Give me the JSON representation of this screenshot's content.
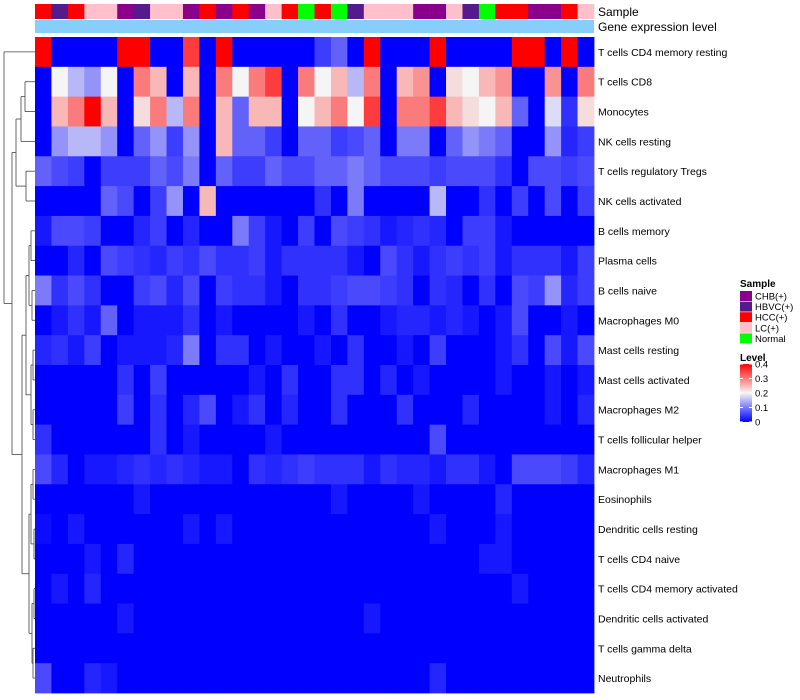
{
  "chart_data": {
    "type": "heatmap",
    "annotation_tracks": [
      "Sample",
      "Gene expression level"
    ],
    "gene_expression_level_color": "#87cefa",
    "sample_groups": [
      {
        "name": "CHB(+)",
        "color": "#8b008b"
      },
      {
        "name": "HBVC(+)",
        "color": "#551a8b"
      },
      {
        "name": "HCC(+)",
        "color": "#ff0000"
      },
      {
        "name": "LC(+)",
        "color": "#ffc0cb"
      },
      {
        "name": "Normal",
        "color": "#00ff00"
      }
    ],
    "sample_annotation": [
      "HCC(+)",
      "HBVC(+)",
      "HCC(+)",
      "LC(+)",
      "LC(+)",
      "CHB(+)",
      "HBVC(+)",
      "LC(+)",
      "LC(+)",
      "CHB(+)",
      "HCC(+)",
      "CHB(+)",
      "HCC(+)",
      "CHB(+)",
      "LC(+)",
      "HCC(+)",
      "Normal",
      "HCC(+)",
      "Normal",
      "HBVC(+)",
      "LC(+)",
      "LC(+)",
      "LC(+)",
      "CHB(+)",
      "CHB(+)",
      "LC(+)",
      "HBVC(+)",
      "Normal",
      "HCC(+)",
      "HCC(+)",
      "CHB(+)",
      "CHB(+)",
      "HCC(+)",
      "LC(+)"
    ],
    "rows": [
      "T cells CD4 memory resting",
      "T cells CD8",
      "Monocytes",
      "NK cells resting",
      "T cells regulatory  Tregs",
      "NK cells activated",
      "B cells memory",
      "Plasma cells",
      "B cells naive",
      "Macrophages M0",
      "Mast cells resting",
      "Mast cells activated",
      "Macrophages M2",
      "T cells follicular helper",
      "Macrophages M1",
      "Eosinophils",
      "Dendritic cells resting",
      "T cells CD4 naive",
      "T cells CD4 memory activated",
      "Dendritic cells activated",
      "T cells gamma delta",
      "Neutrophils"
    ],
    "values": [
      [
        0.4,
        0,
        0,
        0,
        0,
        0.4,
        0.4,
        0,
        0,
        0.35,
        0,
        0.4,
        0,
        0,
        0,
        0,
        0,
        0.05,
        0.08,
        0,
        0.4,
        0,
        0,
        0,
        0.4,
        0,
        0,
        0,
        0,
        0.4,
        0.4,
        0,
        0.4,
        0
      ],
      [
        0,
        0.2,
        0.15,
        0.12,
        0.2,
        0,
        0.3,
        0.25,
        0,
        0.25,
        0,
        0.3,
        0.2,
        0.3,
        0.35,
        0,
        0.3,
        0.2,
        0.25,
        0.15,
        0.3,
        0,
        0.25,
        0.28,
        0,
        0.22,
        0.2,
        0.25,
        0.28,
        0,
        0,
        0.28,
        0,
        0.3
      ],
      [
        0,
        0.25,
        0.3,
        0.4,
        0.25,
        0,
        0.22,
        0.3,
        0.15,
        0.3,
        0,
        0.25,
        0.08,
        0.25,
        0.25,
        0,
        0.2,
        0.25,
        0.3,
        0.2,
        0.35,
        0,
        0.3,
        0.3,
        0.35,
        0.25,
        0.22,
        0.2,
        0.25,
        0.08,
        0,
        0.18,
        0.04,
        0.22
      ],
      [
        0,
        0.12,
        0.15,
        0.15,
        0.12,
        0,
        0.08,
        0.12,
        0.05,
        0.12,
        0,
        0.25,
        0.08,
        0.08,
        0.05,
        0,
        0.08,
        0.08,
        0.05,
        0.06,
        0.08,
        0,
        0.1,
        0.1,
        0,
        0.08,
        0.12,
        0.1,
        0.08,
        0,
        0,
        0.12,
        0.03,
        0.05
      ],
      [
        0.08,
        0.06,
        0.05,
        0,
        0.05,
        0.05,
        0.05,
        0.08,
        0.06,
        0.1,
        0,
        0.08,
        0.05,
        0.05,
        0.08,
        0.06,
        0.06,
        0.08,
        0.08,
        0.1,
        0.08,
        0.06,
        0.06,
        0.06,
        0.05,
        0.06,
        0.06,
        0.06,
        0.04,
        0,
        0.06,
        0.06,
        0.05,
        0.06
      ],
      [
        0,
        0,
        0,
        0,
        0.08,
        0.06,
        0,
        0.05,
        0.12,
        0,
        0.25,
        0,
        0,
        0,
        0,
        0,
        0,
        0.04,
        0,
        0.1,
        0,
        0,
        0,
        0,
        0.15,
        0,
        0,
        0.04,
        0,
        0.05,
        0,
        0.06,
        0,
        0.05
      ],
      [
        0.02,
        0.06,
        0.06,
        0.05,
        0,
        0,
        0.03,
        0.05,
        0,
        0.03,
        0,
        0,
        0.1,
        0.05,
        0.02,
        0,
        0.05,
        0,
        0.06,
        0.05,
        0.04,
        0.02,
        0.03,
        0.04,
        0.03,
        0,
        0.05,
        0.05,
        0.02,
        0,
        0,
        0,
        0,
        0
      ],
      [
        0,
        0,
        0.03,
        0,
        0.06,
        0.05,
        0.04,
        0.03,
        0.05,
        0.04,
        0.06,
        0.04,
        0.04,
        0.05,
        0.02,
        0.04,
        0.04,
        0.04,
        0.04,
        0.02,
        0,
        0.06,
        0.04,
        0.02,
        0.04,
        0.05,
        0.04,
        0.05,
        0.02,
        0.04,
        0.04,
        0.04,
        0.02,
        0.05
      ],
      [
        0.1,
        0.04,
        0.06,
        0.04,
        0,
        0,
        0.05,
        0.06,
        0.03,
        0.06,
        0,
        0.05,
        0.04,
        0.04,
        0.02,
        0,
        0.04,
        0.04,
        0.05,
        0.06,
        0.06,
        0.05,
        0.04,
        0,
        0.04,
        0.03,
        0,
        0.04,
        0,
        0.06,
        0.05,
        0.12,
        0.03,
        0.05
      ],
      [
        0,
        0.02,
        0.04,
        0.02,
        0.08,
        0,
        0.02,
        0.02,
        0.02,
        0.04,
        0,
        0.02,
        0,
        0,
        0,
        0,
        0.02,
        0,
        0.04,
        0,
        0,
        0.02,
        0.03,
        0.03,
        0.02,
        0.03,
        0.02,
        0,
        0.02,
        0.06,
        0,
        0,
        0.02,
        0
      ],
      [
        0.03,
        0.04,
        0.02,
        0.05,
        0,
        0.02,
        0.02,
        0.02,
        0.03,
        0.1,
        0,
        0.04,
        0.04,
        0,
        0.02,
        0,
        0,
        0.02,
        0,
        0.04,
        0,
        0,
        0.02,
        0,
        0.05,
        0,
        0,
        0,
        0.02,
        0.04,
        0,
        0.06,
        0.02,
        0.06
      ],
      [
        0,
        0,
        0,
        0,
        0,
        0.04,
        0,
        0.05,
        0,
        0,
        0,
        0,
        0,
        0.02,
        0,
        0.04,
        0,
        0,
        0.04,
        0.04,
        0,
        0.03,
        0,
        0.02,
        0,
        0,
        0,
        0,
        0.02,
        0,
        0,
        0.02,
        0,
        0.02
      ],
      [
        0,
        0,
        0,
        0,
        0,
        0.05,
        0,
        0.04,
        0,
        0.03,
        0.06,
        0,
        0.02,
        0.04,
        0,
        0.03,
        0,
        0,
        0.04,
        0,
        0,
        0,
        0.04,
        0,
        0,
        0,
        0.03,
        0,
        0,
        0,
        0,
        0.02,
        0,
        0.03
      ],
      [
        0.04,
        0,
        0,
        0,
        0,
        0,
        0,
        0.04,
        0,
        0.02,
        0,
        0,
        0,
        0,
        0.02,
        0,
        0,
        0,
        0,
        0,
        0,
        0,
        0,
        0,
        0.06,
        0,
        0,
        0,
        0,
        0,
        0,
        0,
        0,
        0
      ],
      [
        0.06,
        0.03,
        0,
        0.02,
        0.02,
        0.03,
        0.04,
        0.03,
        0.04,
        0.03,
        0.02,
        0.02,
        0,
        0.04,
        0.03,
        0.04,
        0.05,
        0.04,
        0.04,
        0.04,
        0.02,
        0.04,
        0.03,
        0.03,
        0.02,
        0.04,
        0.04,
        0.02,
        0,
        0.06,
        0.06,
        0.06,
        0.05,
        0.03
      ],
      [
        0,
        0,
        0,
        0,
        0,
        0,
        0.02,
        0,
        0,
        0,
        0,
        0,
        0,
        0,
        0,
        0,
        0,
        0,
        0.02,
        0,
        0,
        0,
        0,
        0.02,
        0,
        0,
        0,
        0,
        0.03,
        0,
        0,
        0,
        0,
        0
      ],
      [
        0.01,
        0,
        0.02,
        0,
        0,
        0,
        0,
        0,
        0,
        0.02,
        0,
        0.02,
        0,
        0,
        0,
        0,
        0,
        0,
        0,
        0,
        0,
        0,
        0,
        0,
        0.02,
        0,
        0,
        0,
        0.02,
        0,
        0,
        0,
        0,
        0
      ],
      [
        0,
        0,
        0,
        0.02,
        0,
        0.03,
        0,
        0,
        0,
        0,
        0,
        0,
        0,
        0,
        0,
        0,
        0,
        0,
        0,
        0,
        0,
        0,
        0,
        0,
        0,
        0,
        0,
        0.02,
        0.02,
        0,
        0,
        0,
        0,
        0
      ],
      [
        0,
        0.02,
        0,
        0.03,
        0,
        0,
        0,
        0,
        0,
        0,
        0,
        0,
        0,
        0,
        0,
        0,
        0,
        0,
        0,
        0,
        0,
        0,
        0,
        0,
        0,
        0,
        0,
        0,
        0,
        0.02,
        0,
        0,
        0,
        0
      ],
      [
        0,
        0,
        0,
        0,
        0,
        0.02,
        0,
        0,
        0,
        0,
        0,
        0,
        0,
        0,
        0,
        0,
        0,
        0,
        0,
        0,
        0.02,
        0,
        0,
        0,
        0,
        0,
        0,
        0,
        0,
        0,
        0,
        0,
        0,
        0
      ],
      [
        0,
        0,
        0,
        0,
        0,
        0,
        0,
        0,
        0,
        0,
        0,
        0,
        0,
        0,
        0,
        0,
        0,
        0,
        0,
        0,
        0,
        0,
        0,
        0,
        0,
        0,
        0,
        0,
        0,
        0,
        0,
        0,
        0,
        0
      ],
      [
        0.06,
        0,
        0,
        0.03,
        0.02,
        0,
        0,
        0,
        0,
        0,
        0,
        0,
        0,
        0,
        0,
        0,
        0,
        0,
        0,
        0,
        0,
        0,
        0,
        0,
        0.03,
        0,
        0,
        0,
        0,
        0,
        0,
        0,
        0,
        0
      ]
    ],
    "color_scale": {
      "low": "#0000ff",
      "mid": "#f5f5f5",
      "high": "#ff0000",
      "range": [
        0,
        0.4
      ]
    },
    "legends": {
      "sample_title": "Sample",
      "level_title": "Level",
      "level_ticks": [
        "0.4",
        "0.3",
        "0.2",
        "0.1",
        "0"
      ],
      "level_tick_values": [
        0.4,
        0.3,
        0.2,
        0.1,
        0
      ]
    },
    "dendrogram": "rows clustered (hierarchical)"
  }
}
